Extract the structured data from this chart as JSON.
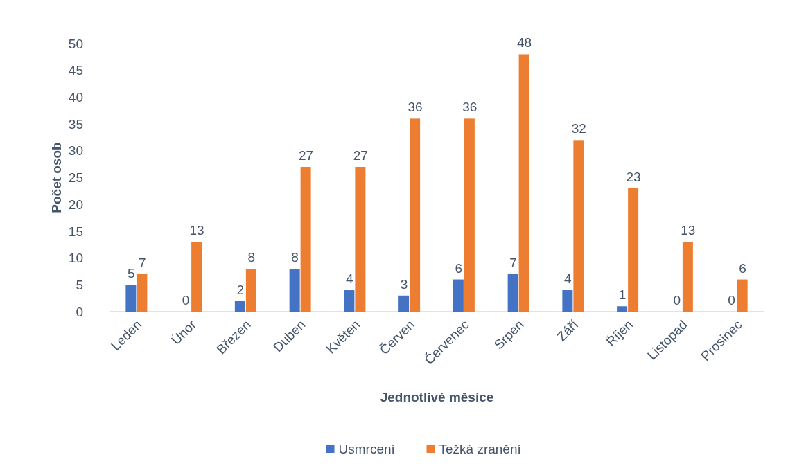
{
  "chart_data": {
    "type": "bar",
    "xlabel": "Jednotlivé měsíce",
    "ylabel": "Počet osob",
    "categories": [
      "Leden",
      "Únor",
      "Březen",
      "Duben",
      "Květen",
      "Červen",
      "Červenec",
      "Srpen",
      "Září",
      "Říjen",
      "Listopad",
      "Prosinec"
    ],
    "series": [
      {
        "name": "Usmrcení",
        "color": "#4472c4",
        "values": [
          5,
          0,
          2,
          8,
          4,
          3,
          6,
          7,
          4,
          1,
          0,
          0
        ]
      },
      {
        "name": "Težká zranění",
        "color": "#ed7d31",
        "values": [
          7,
          13,
          8,
          27,
          27,
          36,
          36,
          48,
          32,
          23,
          13,
          6
        ]
      }
    ],
    "ylim": [
      0,
      50
    ],
    "yticks": [
      0,
      5,
      10,
      15,
      20,
      25,
      30,
      35,
      40,
      45,
      50
    ],
    "data_labels": true,
    "legend": "bottom"
  }
}
